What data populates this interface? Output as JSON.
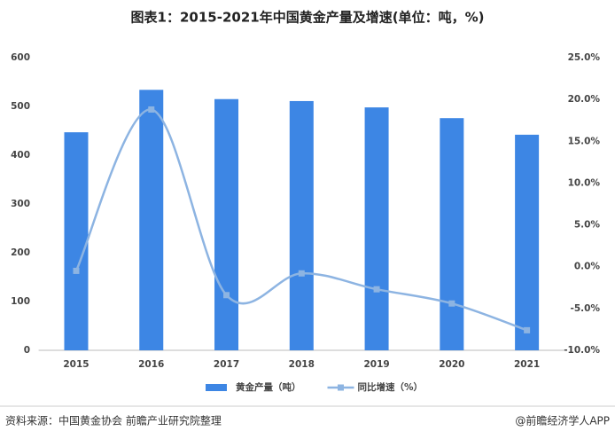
{
  "chart_data": {
    "type": "bar",
    "title": "图表1：2015-2021年中国黄金产量及增速(单位：吨，%)",
    "categories": [
      "2015",
      "2016",
      "2017",
      "2018",
      "2019",
      "2020",
      "2021"
    ],
    "series": [
      {
        "name": "黄金产量（吨）",
        "color": "#3d86e4",
        "values": [
          447,
          534,
          515,
          511,
          498,
          476,
          442
        ]
      },
      {
        "name": "同比增速（%）",
        "color": "#8db4e2",
        "type": "line",
        "axis": "y2",
        "values": [
          -0.5,
          18.8,
          -3.4,
          -0.8,
          -2.7,
          -4.4,
          -7.6
        ]
      }
    ],
    "ylim": [
      0,
      600
    ],
    "yticks": [
      0,
      100,
      200,
      300,
      400,
      500,
      600
    ],
    "y2lim": [
      -10,
      25
    ],
    "y2ticks": [
      {
        "value": -10,
        "label": "-10.0%"
      },
      {
        "value": -5,
        "label": "-5.0%"
      },
      {
        "value": 0,
        "label": "0.0%"
      },
      {
        "value": 5,
        "label": "5.0%"
      },
      {
        "value": 10,
        "label": "10.0%"
      },
      {
        "value": 15,
        "label": "15.0%"
      },
      {
        "value": 20,
        "label": "20.0%"
      },
      {
        "value": 25,
        "label": "25.0%"
      }
    ],
    "legend": "bottom",
    "source": "资料来源：中国黄金协会 前瞻产业研究院整理",
    "credit": "@前瞻经济学人APP"
  }
}
